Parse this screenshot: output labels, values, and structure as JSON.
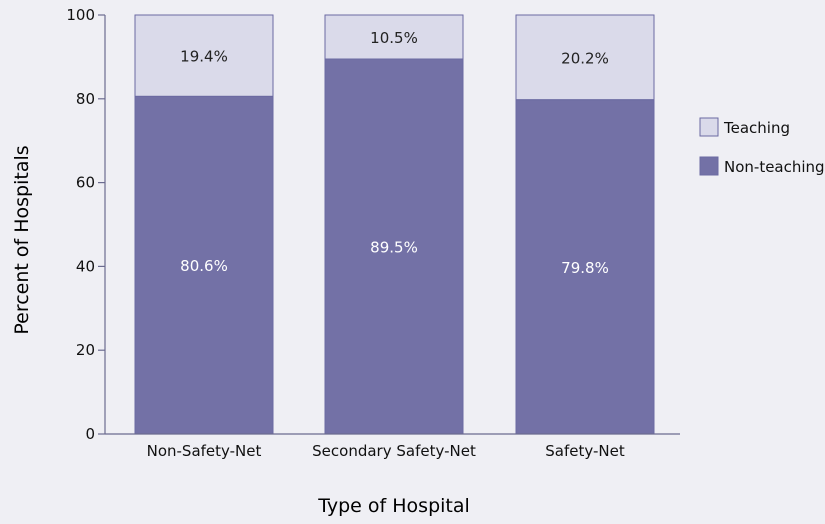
{
  "chart_data": {
    "type": "bar",
    "stacked": true,
    "title": "",
    "xlabel": "Type of Hospital",
    "ylabel": "Percent of Hospitals",
    "ylim": [
      0,
      100
    ],
    "yticks": [
      "0",
      "20",
      "40",
      "60",
      "80",
      "100"
    ],
    "categories": [
      "Non-Safety-Net",
      "Secondary Safety-Net",
      "Safety-Net"
    ],
    "series": [
      {
        "name": "Non-teaching",
        "values": [
          80.6,
          89.5,
          79.8
        ],
        "labels": [
          "80.6%",
          "89.5%",
          "79.8%"
        ],
        "color": "#7371a6"
      },
      {
        "name": "Teaching",
        "values": [
          19.4,
          10.5,
          20.2
        ],
        "labels": [
          "19.4%",
          "10.5%",
          "20.2%"
        ],
        "color": "#dadaea"
      }
    ],
    "legend": {
      "placement": "right",
      "entries": [
        "Teaching",
        "Non-teaching"
      ]
    },
    "grid": false
  },
  "colors": {
    "background": "#efeff4",
    "axis": "#6b6b8f",
    "text": "#111111",
    "bar_outline": "#6b6aa2",
    "non_teaching_label": "#ffffff",
    "teaching_label": "#222222"
  }
}
